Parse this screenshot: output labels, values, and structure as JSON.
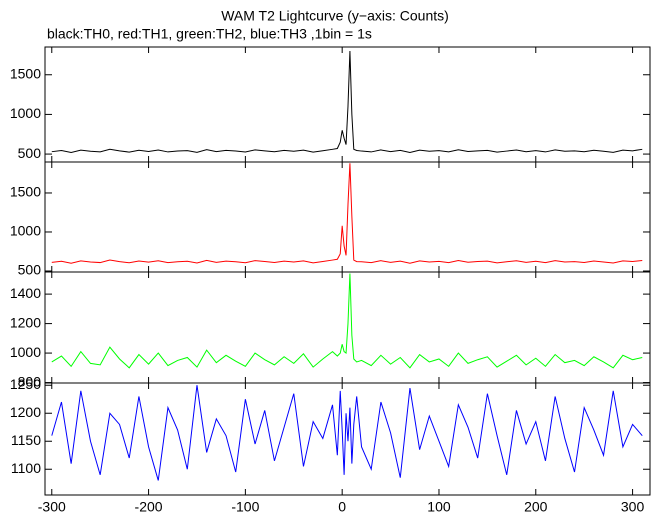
{
  "title": "WAM T2 Lightcurve (y−axis: Counts)",
  "subtitle": "black:TH0, red:TH1, green:TH2, blue:TH3 ,1bin = 1s",
  "chart_data": [
    {
      "type": "line",
      "x": [
        -300,
        -290,
        -280,
        -270,
        -260,
        -250,
        -240,
        -230,
        -220,
        -210,
        -200,
        -190,
        -180,
        -170,
        -160,
        -150,
        -140,
        -130,
        -120,
        -110,
        -100,
        -90,
        -80,
        -70,
        -60,
        -50,
        -40,
        -30,
        -20,
        -10,
        -5,
        -2,
        0,
        2,
        4,
        6,
        8,
        10,
        12,
        15,
        20,
        30,
        40,
        50,
        60,
        70,
        80,
        90,
        100,
        110,
        120,
        130,
        140,
        150,
        160,
        170,
        180,
        190,
        200,
        210,
        220,
        230,
        240,
        250,
        260,
        270,
        280,
        290,
        300,
        310
      ],
      "series": [
        {
          "color": "#000000",
          "values": [
            530,
            545,
            520,
            550,
            535,
            528,
            560,
            540,
            525,
            548,
            533,
            551,
            527,
            539,
            544,
            522,
            556,
            531,
            547,
            538,
            526,
            553,
            541,
            529,
            546,
            535,
            550,
            524,
            542,
            560,
            570,
            650,
            800,
            700,
            620,
            1100,
            1800,
            1000,
            560,
            545,
            538,
            527,
            552,
            531,
            546,
            520,
            549,
            536,
            543,
            528,
            555,
            532,
            541,
            547,
            524,
            538,
            551,
            530,
            544,
            527,
            553,
            535,
            540,
            529,
            548,
            536,
            522,
            550,
            541,
            560
          ]
        }
      ],
      "xlim": [
        -307,
        318
      ],
      "ylim": [
        400,
        1850
      ],
      "yticks": [
        500,
        1000,
        1500
      ]
    },
    {
      "type": "line",
      "x": [
        -300,
        -290,
        -280,
        -270,
        -260,
        -250,
        -240,
        -230,
        -220,
        -210,
        -200,
        -190,
        -180,
        -170,
        -160,
        -150,
        -140,
        -130,
        -120,
        -110,
        -100,
        -90,
        -80,
        -70,
        -60,
        -50,
        -40,
        -30,
        -20,
        -10,
        -5,
        -2,
        0,
        2,
        4,
        6,
        8,
        10,
        12,
        15,
        20,
        30,
        40,
        50,
        60,
        70,
        80,
        90,
        100,
        110,
        120,
        130,
        140,
        150,
        160,
        170,
        180,
        190,
        200,
        210,
        220,
        230,
        240,
        250,
        260,
        270,
        280,
        290,
        300,
        310
      ],
      "series": [
        {
          "color": "#ff0000",
          "values": [
            610,
            625,
            600,
            630,
            615,
            608,
            640,
            620,
            605,
            628,
            613,
            631,
            607,
            619,
            624,
            602,
            636,
            611,
            627,
            618,
            606,
            633,
            621,
            609,
            626,
            615,
            630,
            604,
            622,
            640,
            650,
            720,
            1080,
            820,
            700,
            1350,
            1880,
            1200,
            640,
            620,
            618,
            607,
            632,
            611,
            626,
            600,
            629,
            616,
            623,
            608,
            635,
            612,
            621,
            627,
            604,
            618,
            631,
            610,
            624,
            607,
            633,
            615,
            620,
            609,
            628,
            616,
            602,
            630,
            621,
            635
          ]
        }
      ],
      "xlim": [
        -307,
        318
      ],
      "ylim": [
        487,
        1897
      ],
      "yticks": [
        500,
        1000,
        1500
      ]
    },
    {
      "type": "line",
      "x": [
        -300,
        -290,
        -280,
        -270,
        -260,
        -250,
        -240,
        -230,
        -220,
        -210,
        -200,
        -190,
        -180,
        -170,
        -160,
        -150,
        -140,
        -130,
        -120,
        -110,
        -100,
        -90,
        -80,
        -70,
        -60,
        -50,
        -40,
        -30,
        -20,
        -10,
        -5,
        -2,
        0,
        2,
        4,
        6,
        8,
        10,
        12,
        15,
        20,
        30,
        40,
        50,
        60,
        70,
        80,
        90,
        100,
        110,
        120,
        130,
        140,
        150,
        160,
        170,
        180,
        190,
        200,
        210,
        220,
        230,
        240,
        250,
        260,
        270,
        280,
        290,
        300,
        310
      ],
      "series": [
        {
          "color": "#00ff00",
          "values": [
            940,
            980,
            910,
            1010,
            930,
            920,
            1040,
            960,
            900,
            990,
            925,
            1000,
            915,
            950,
            970,
            905,
            1020,
            935,
            985,
            945,
            910,
            1000,
            955,
            920,
            975,
            930,
            995,
            905,
            960,
            1010,
            980,
            1000,
            1060,
            1010,
            1000,
            1200,
            1540,
            1120,
            960,
            940,
            950,
            915,
            985,
            925,
            970,
            900,
            990,
            940,
            960,
            910,
            1000,
            930,
            955,
            975,
            905,
            945,
            985,
            920,
            965,
            910,
            990,
            935,
            950,
            915,
            975,
            940,
            900,
            985,
            955,
            970
          ]
        }
      ],
      "xlim": [
        -307,
        318
      ],
      "ylim": [
        797,
        1550
      ],
      "yticks": [
        800,
        1000,
        1200,
        1400
      ]
    },
    {
      "type": "line",
      "x": [
        -300,
        -290,
        -280,
        -270,
        -260,
        -250,
        -240,
        -230,
        -220,
        -210,
        -200,
        -190,
        -180,
        -170,
        -160,
        -150,
        -140,
        -130,
        -120,
        -110,
        -100,
        -90,
        -80,
        -70,
        -60,
        -50,
        -40,
        -30,
        -20,
        -10,
        -5,
        -2,
        0,
        2,
        4,
        6,
        8,
        10,
        12,
        15,
        20,
        30,
        40,
        50,
        60,
        70,
        80,
        90,
        100,
        110,
        120,
        130,
        140,
        150,
        160,
        170,
        180,
        190,
        200,
        210,
        220,
        230,
        240,
        250,
        260,
        270,
        280,
        290,
        300,
        310
      ],
      "series": [
        {
          "color": "#0000ff",
          "values": [
            1160,
            1220,
            1110,
            1240,
            1150,
            1090,
            1200,
            1180,
            1120,
            1230,
            1140,
            1080,
            1210,
            1170,
            1100,
            1250,
            1130,
            1190,
            1160,
            1095,
            1225,
            1145,
            1205,
            1115,
            1175,
            1235,
            1105,
            1185,
            1155,
            1215,
            1125,
            1240,
            1170,
            1090,
            1200,
            1150,
            1210,
            1110,
            1180,
            1230,
            1140,
            1100,
            1220,
            1165,
            1085,
            1245,
            1135,
            1195,
            1150,
            1105,
            1215,
            1175,
            1120,
            1235,
            1160,
            1090,
            1205,
            1145,
            1185,
            1115,
            1230,
            1155,
            1095,
            1210,
            1170,
            1125,
            1240,
            1140,
            1180,
            1160
          ]
        }
      ],
      "xlim": [
        -307,
        318
      ],
      "ylim": [
        1054,
        1254
      ],
      "yticks": [
        1100,
        1150,
        1200,
        1250
      ],
      "xticks": [
        -300,
        -200,
        -100,
        0,
        100,
        200,
        300
      ]
    }
  ]
}
